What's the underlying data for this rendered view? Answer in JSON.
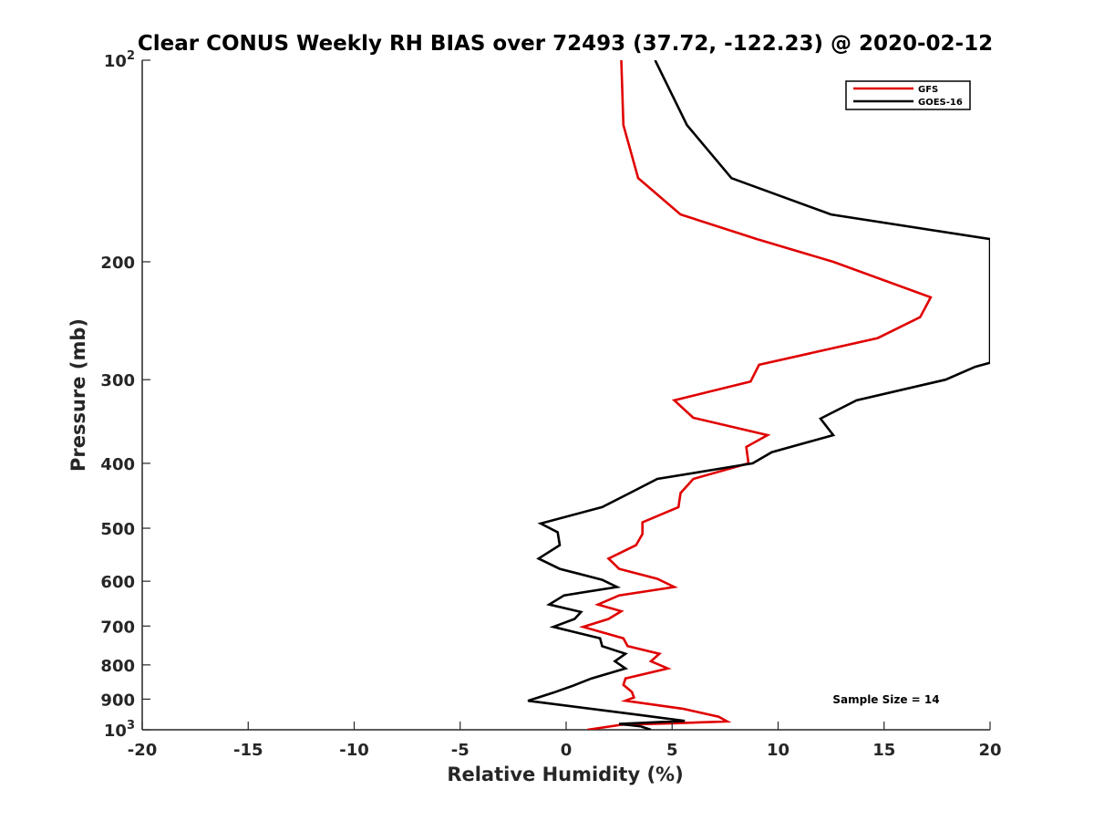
{
  "chart_data": {
    "type": "line",
    "title": "Clear CONUS Weekly RH BIAS over 72493 (37.72, -122.23) @ 2020-02-12",
    "xlabel": "Relative Humidity (%)",
    "ylabel": "Pressure (mb)",
    "xlim": [
      -20,
      20
    ],
    "ylim": [
      100,
      1000
    ],
    "y_scale": "log",
    "y_reversed": true,
    "x_ticks": [
      -20,
      -15,
      -10,
      -5,
      0,
      5,
      10,
      15,
      20
    ],
    "x_tick_labels": [
      "-20",
      "-15",
      "-10",
      "-5",
      "0",
      "5",
      "10",
      "15",
      "20"
    ],
    "y_ticks": [
      100,
      200,
      300,
      400,
      500,
      600,
      700,
      800,
      900,
      1000
    ],
    "y_tick_labels": [
      {
        "base": "10",
        "sup": "2"
      },
      {
        "base": "200",
        "sup": ""
      },
      {
        "base": "300",
        "sup": ""
      },
      {
        "base": "400",
        "sup": ""
      },
      {
        "base": "500",
        "sup": ""
      },
      {
        "base": "600",
        "sup": ""
      },
      {
        "base": "700",
        "sup": ""
      },
      {
        "base": "800",
        "sup": ""
      },
      {
        "base": "900",
        "sup": ""
      },
      {
        "base": "10",
        "sup": "3"
      }
    ],
    "grid": false,
    "legend_position": "top-right",
    "annotation": "Sample Size = 14",
    "series": [
      {
        "name": "GFS",
        "color": "#e00000",
        "points": [
          [
            2.6,
            100
          ],
          [
            2.7,
            125
          ],
          [
            3.4,
            150
          ],
          [
            5.4,
            170
          ],
          [
            9.0,
            185
          ],
          [
            12.6,
            200
          ],
          [
            17.2,
            226
          ],
          [
            16.7,
            242
          ],
          [
            14.7,
            260
          ],
          [
            9.1,
            285
          ],
          [
            8.7,
            302
          ],
          [
            5.1,
            322
          ],
          [
            6.0,
            342
          ],
          [
            9.5,
            363
          ],
          [
            8.5,
            378
          ],
          [
            8.6,
            400
          ],
          [
            6.0,
            422
          ],
          [
            5.4,
            443
          ],
          [
            5.3,
            465
          ],
          [
            3.6,
            490
          ],
          [
            3.6,
            510
          ],
          [
            3.3,
            530
          ],
          [
            2.0,
            555
          ],
          [
            2.5,
            575
          ],
          [
            4.3,
            595
          ],
          [
            5.1,
            612
          ],
          [
            2.5,
            630
          ],
          [
            1.5,
            650
          ],
          [
            2.6,
            665
          ],
          [
            2.0,
            683
          ],
          [
            0.8,
            702
          ],
          [
            2.7,
            730
          ],
          [
            2.9,
            750
          ],
          [
            4.4,
            770
          ],
          [
            4.0,
            790
          ],
          [
            4.8,
            810
          ],
          [
            2.8,
            838
          ],
          [
            2.7,
            857
          ],
          [
            3.1,
            878
          ],
          [
            3.2,
            895
          ],
          [
            2.8,
            905
          ],
          [
            5.5,
            930
          ],
          [
            7.2,
            956
          ],
          [
            7.6,
            972
          ],
          [
            5.0,
            978
          ],
          [
            2.6,
            983
          ],
          [
            1.0,
            1000
          ]
        ]
      },
      {
        "name": "GOES-16",
        "color": "#000000",
        "points": [
          [
            4.2,
            100
          ],
          [
            5.7,
            125
          ],
          [
            7.8,
            150
          ],
          [
            12.5,
            170
          ],
          [
            20.0,
            185
          ],
          [
            20.0,
            283
          ],
          [
            19.3,
            287
          ],
          [
            17.9,
            300
          ],
          [
            13.7,
            322
          ],
          [
            12.0,
            343
          ],
          [
            12.6,
            363
          ],
          [
            9.7,
            385
          ],
          [
            8.8,
            400
          ],
          [
            4.3,
            422
          ],
          [
            3.0,
            443
          ],
          [
            1.7,
            465
          ],
          [
            -1.2,
            492
          ],
          [
            -0.4,
            507
          ],
          [
            -0.3,
            530
          ],
          [
            -1.3,
            555
          ],
          [
            -0.3,
            575
          ],
          [
            1.7,
            597
          ],
          [
            2.4,
            612
          ],
          [
            -0.1,
            630
          ],
          [
            -0.8,
            650
          ],
          [
            0.7,
            667
          ],
          [
            0.4,
            683
          ],
          [
            -0.6,
            702
          ],
          [
            1.6,
            730
          ],
          [
            1.7,
            750
          ],
          [
            2.8,
            770
          ],
          [
            2.3,
            790
          ],
          [
            2.8,
            810
          ],
          [
            1.2,
            838
          ],
          [
            0.3,
            860
          ],
          [
            -0.6,
            880
          ],
          [
            -1.8,
            905
          ],
          [
            3.4,
            950
          ],
          [
            5.6,
            970
          ],
          [
            2.5,
            980
          ],
          [
            3.5,
            988
          ],
          [
            4.0,
            1000
          ]
        ]
      }
    ]
  }
}
